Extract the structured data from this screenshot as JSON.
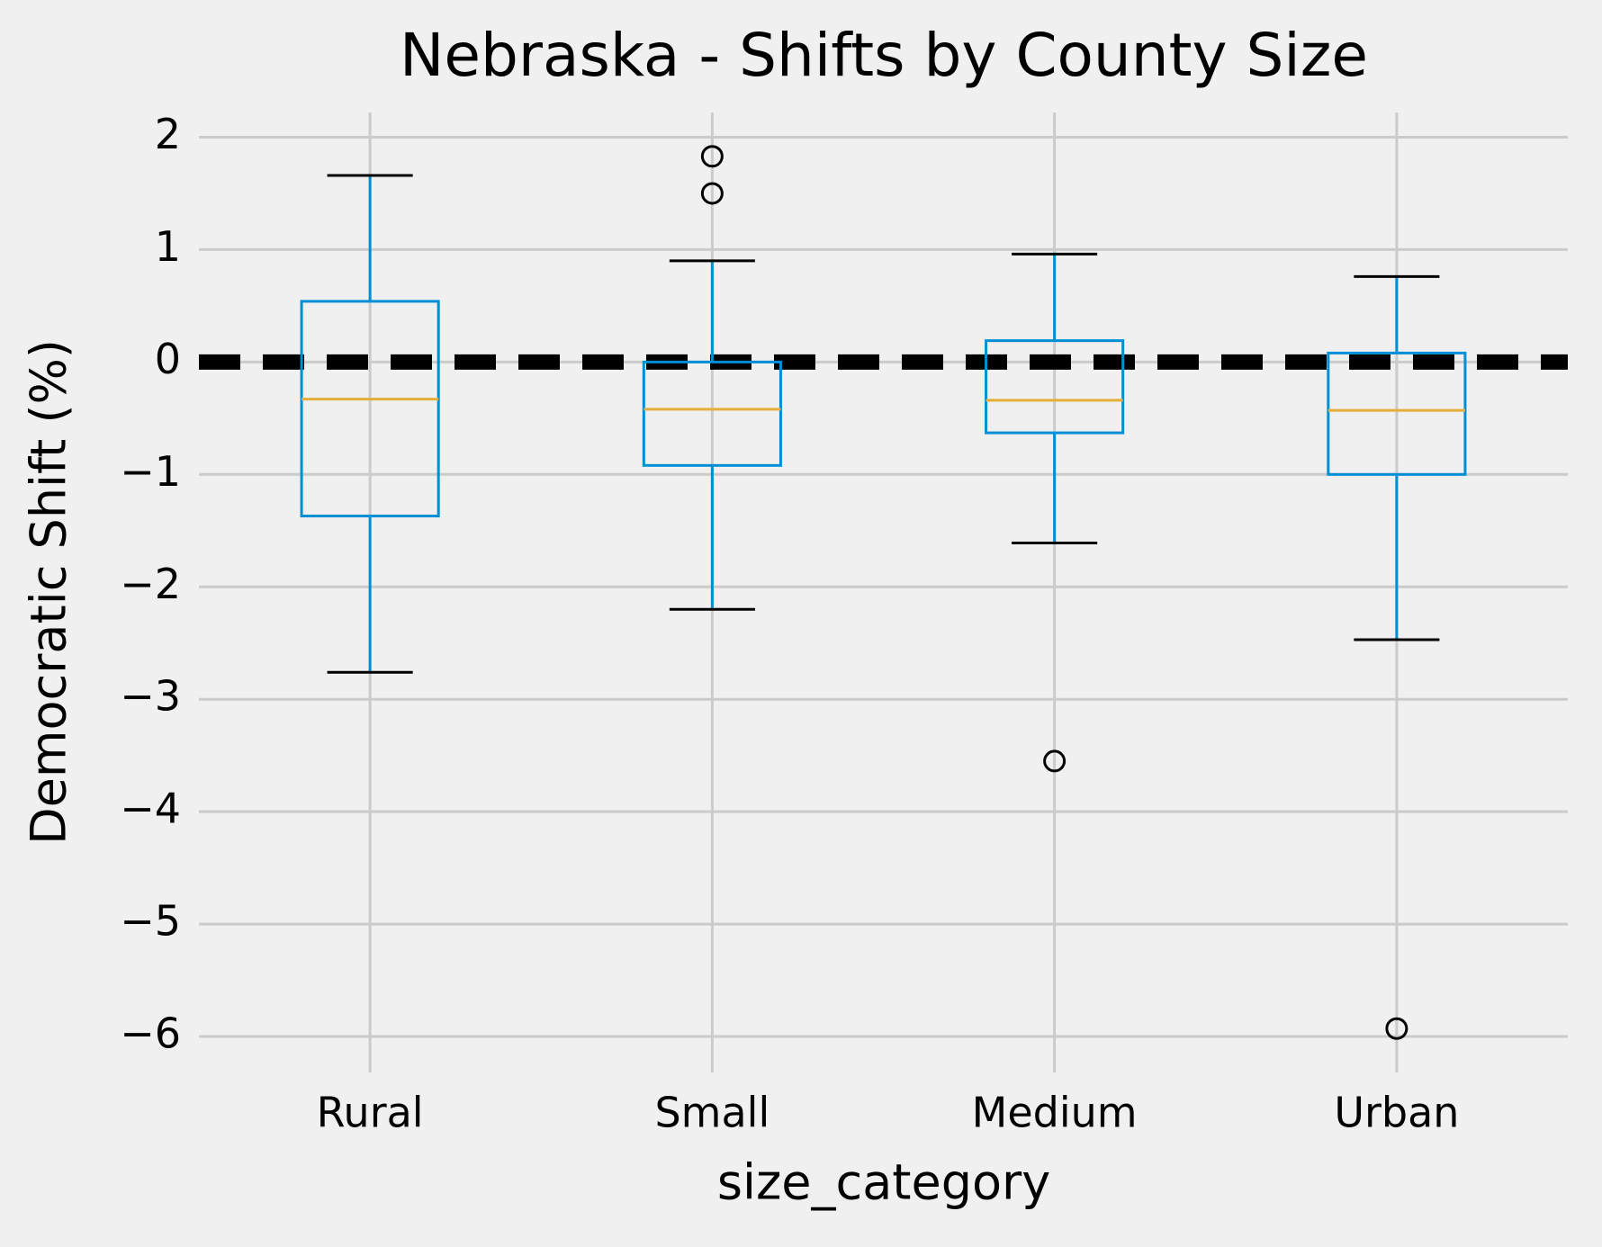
{
  "chart_data": {
    "type": "box",
    "title": "Nebraska - Shifts by County Size",
    "x_label": "size_category",
    "y_label": "Democratic Shift (%)",
    "categories": [
      "Rural",
      "Small",
      "Medium",
      "Urban"
    ],
    "boxes": [
      {
        "whislo": -2.76,
        "q1": -1.37,
        "med": -0.33,
        "q3": 0.54,
        "whishi": 1.66,
        "fliers": []
      },
      {
        "whislo": -2.2,
        "q1": -0.92,
        "med": -0.42,
        "q3": 0.0,
        "whishi": 0.9,
        "fliers": [
          1.83,
          1.5
        ]
      },
      {
        "whislo": -1.61,
        "q1": -0.63,
        "med": -0.34,
        "q3": 0.19,
        "whishi": 0.96,
        "fliers": [
          -3.55
        ]
      },
      {
        "whislo": -2.47,
        "q1": -1.0,
        "med": -0.43,
        "q3": 0.08,
        "whishi": 0.76,
        "fliers": [
          -5.93
        ]
      }
    ],
    "box_color": "#008fd5",
    "median_color": "#e5ae38",
    "reference_line": 0,
    "ylim": [
      -6.32,
      2.22
    ],
    "yticks": [
      {
        "value": -6,
        "label": "−6"
      },
      {
        "value": -5,
        "label": "−5"
      },
      {
        "value": -4,
        "label": "−4"
      },
      {
        "value": -3,
        "label": "−3"
      },
      {
        "value": -2,
        "label": "−2"
      },
      {
        "value": -1,
        "label": "−1"
      },
      0,
      1,
      2
    ],
    "grid": true
  }
}
